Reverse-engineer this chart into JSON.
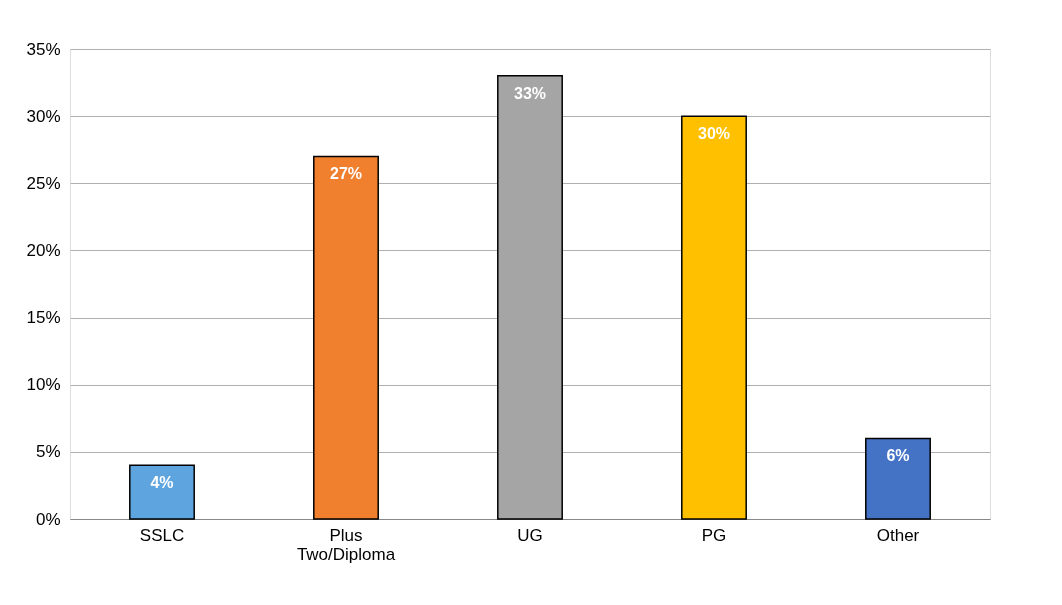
{
  "chart_data": {
    "type": "bar",
    "categories": [
      "SSLC",
      "Plus Two/Diploma",
      "UG",
      "PG",
      "Other"
    ],
    "values": [
      4,
      27,
      33,
      30,
      6
    ],
    "colors": [
      "#5ea5e0",
      "#f07f2e",
      "#a5a5a5",
      "#ffc000",
      "#4472c4"
    ],
    "value_labels": [
      "4%",
      "27%",
      "33%",
      "30%",
      "6%"
    ],
    "ylim": [
      0,
      35
    ],
    "yticks": [
      {
        "value": 0,
        "label": "0%"
      },
      {
        "value": 5,
        "label": "5%"
      },
      {
        "value": 10,
        "label": "10%"
      },
      {
        "value": 15,
        "label": "15%"
      },
      {
        "value": 20,
        "label": "20%"
      },
      {
        "value": 25,
        "label": "25%"
      },
      {
        "value": 30,
        "label": "30%"
      },
      {
        "value": 35,
        "label": "35%"
      }
    ],
    "grid": "y"
  }
}
